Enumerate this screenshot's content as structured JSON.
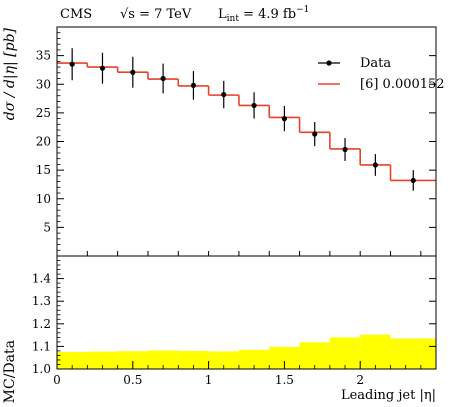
{
  "header": {
    "experiment": "CMS",
    "sqrt_s_text": "√s = 7 TeV",
    "lumi_prefix": "L",
    "lumi_sub": "int",
    "lumi_value": " = 4.9 fb",
    "lumi_sup": "−1"
  },
  "chart_data": [
    {
      "type": "line",
      "panel": "main",
      "ylabel": "dσ / d|η| [pb]",
      "ylim": [
        0,
        40
      ],
      "xlim": [
        0,
        2.5
      ],
      "yticks": [
        5,
        10,
        15,
        20,
        25,
        30,
        35
      ],
      "legend_position": "top-right",
      "bin_edges": [
        0,
        0.2,
        0.4,
        0.6,
        0.8,
        1.0,
        1.2,
        1.4,
        1.6,
        1.8,
        2.0,
        2.2,
        2.4,
        2.5
      ],
      "series": [
        {
          "name": "Data",
          "kind": "points-with-errors",
          "color": "#000000",
          "x": [
            0.1,
            0.3,
            0.5,
            0.7,
            0.9,
            1.1,
            1.3,
            1.5,
            1.7,
            1.9,
            2.1,
            2.35
          ],
          "y": [
            33.5,
            32.8,
            32.1,
            31.0,
            29.8,
            28.2,
            26.3,
            24.0,
            21.3,
            18.6,
            15.9,
            13.2
          ],
          "yerr": [
            2.8,
            2.7,
            2.7,
            2.6,
            2.5,
            2.4,
            2.3,
            2.2,
            2.1,
            2.0,
            1.9,
            1.8
          ]
        },
        {
          "name": "[6] 0.000152",
          "kind": "step",
          "color": "#e8402a",
          "values": [
            33.7,
            33.0,
            32.1,
            30.9,
            29.7,
            28.1,
            26.3,
            24.2,
            21.6,
            18.7,
            15.9,
            13.2,
            13.2
          ]
        }
      ]
    },
    {
      "type": "area",
      "panel": "ratio",
      "ylabel": "MC/Data",
      "xlabel": "Leading jet |η|",
      "ylim": [
        1.0,
        1.5
      ],
      "xlim": [
        0,
        2.5
      ],
      "yticks": [
        1.0,
        1.1,
        1.2,
        1.3,
        1.4
      ],
      "xticks": [
        0,
        0.5,
        1,
        1.5,
        2
      ],
      "band_color": "#ffff00",
      "bin_edges": [
        0,
        0.2,
        0.4,
        0.6,
        0.8,
        1.0,
        1.2,
        1.4,
        1.6,
        1.8,
        2.0,
        2.2,
        2.4,
        2.5
      ],
      "band_upper": [
        1.075,
        1.077,
        1.079,
        1.082,
        1.08,
        1.078,
        1.085,
        1.098,
        1.118,
        1.14,
        1.152,
        1.135,
        1.135
      ],
      "band_lower": [
        1.0,
        1.0,
        1.0,
        1.0,
        1.0,
        1.0,
        1.0,
        1.0,
        1.0,
        1.0,
        1.0,
        1.0,
        1.0
      ]
    }
  ]
}
